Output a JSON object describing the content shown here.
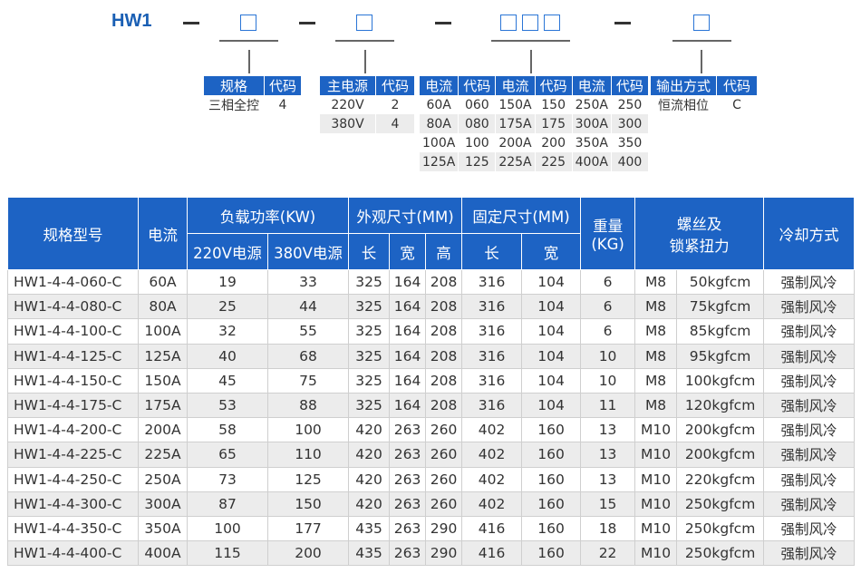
{
  "model_code": {
    "prefix": "HW1"
  },
  "legend_tables": {
    "spec": {
      "headers": [
        "规格",
        "代码"
      ],
      "rows": [
        [
          "三相全控",
          "4"
        ]
      ]
    },
    "power": {
      "headers": [
        "主电源",
        "代码"
      ],
      "rows": [
        [
          "220V",
          "2"
        ],
        [
          "380V",
          "4"
        ]
      ]
    },
    "current": {
      "headers": [
        "电流",
        "代码",
        "电流",
        "代码",
        "电流",
        "代码"
      ],
      "rows": [
        [
          "60A",
          "060",
          "150A",
          "150",
          "250A",
          "250"
        ],
        [
          "80A",
          "080",
          "175A",
          "175",
          "300A",
          "300"
        ],
        [
          "100A",
          "100",
          "200A",
          "200",
          "350A",
          "350"
        ],
        [
          "125A",
          "125",
          "225A",
          "225",
          "400A",
          "400"
        ]
      ]
    },
    "output": {
      "headers": [
        "输出方式",
        "代码"
      ],
      "rows": [
        [
          "恒流相位",
          "C"
        ]
      ]
    }
  },
  "spec_table": {
    "headers": {
      "model": "规格型号",
      "current": "电流",
      "load_power": "负载功率(KW)",
      "v220": "220V电源",
      "v380": "380V电源",
      "dimensions": "外观尺寸(MM)",
      "mounting": "固定尺寸(MM)",
      "length": "长",
      "width": "宽",
      "height": "高",
      "weight_line1": "重量",
      "weight_line2": "(KG)",
      "screw_line1": "螺丝及",
      "screw_line2": "锁紧扭力",
      "cooling": "冷却方式"
    },
    "rows": [
      [
        "HW1-4-4-060-C",
        "60A",
        "19",
        "33",
        "325",
        "164",
        "208",
        "316",
        "104",
        "6",
        "M8",
        "50kgfcm",
        "强制风冷"
      ],
      [
        "HW1-4-4-080-C",
        "80A",
        "25",
        "44",
        "325",
        "164",
        "208",
        "316",
        "104",
        "6",
        "M8",
        "75kgfcm",
        "强制风冷"
      ],
      [
        "HW1-4-4-100-C",
        "100A",
        "32",
        "55",
        "325",
        "164",
        "208",
        "316",
        "104",
        "6",
        "M8",
        "85kgfcm",
        "强制风冷"
      ],
      [
        "HW1-4-4-125-C",
        "125A",
        "40",
        "68",
        "325",
        "164",
        "208",
        "316",
        "104",
        "10",
        "M8",
        "95kgfcm",
        "强制风冷"
      ],
      [
        "HW1-4-4-150-C",
        "150A",
        "45",
        "75",
        "325",
        "164",
        "208",
        "316",
        "104",
        "10",
        "M8",
        "100kgfcm",
        "强制风冷"
      ],
      [
        "HW1-4-4-175-C",
        "175A",
        "53",
        "88",
        "325",
        "164",
        "208",
        "316",
        "104",
        "11",
        "M8",
        "120kgfcm",
        "强制风冷"
      ],
      [
        "HW1-4-4-200-C",
        "200A",
        "58",
        "100",
        "420",
        "263",
        "260",
        "402",
        "160",
        "13",
        "M10",
        "200kgfcm",
        "强制风冷"
      ],
      [
        "HW1-4-4-225-C",
        "225A",
        "65",
        "110",
        "420",
        "263",
        "260",
        "402",
        "160",
        "13",
        "M10",
        "200kgfcm",
        "强制风冷"
      ],
      [
        "HW1-4-4-250-C",
        "250A",
        "73",
        "125",
        "420",
        "263",
        "260",
        "402",
        "160",
        "13",
        "M10",
        "220kgfcm",
        "强制风冷"
      ],
      [
        "HW1-4-4-300-C",
        "300A",
        "87",
        "150",
        "420",
        "263",
        "260",
        "402",
        "160",
        "15",
        "M10",
        "250kgfcm",
        "强制风冷"
      ],
      [
        "HW1-4-4-350-C",
        "350A",
        "100",
        "177",
        "435",
        "263",
        "290",
        "416",
        "160",
        "18",
        "M10",
        "250kgfcm",
        "强制风冷"
      ],
      [
        "HW1-4-4-400-C",
        "400A",
        "115",
        "200",
        "435",
        "263",
        "290",
        "416",
        "160",
        "22",
        "M10",
        "250kgfcm",
        "强制风冷"
      ]
    ]
  },
  "colors": {
    "header_blue": "#1d63c4",
    "title_blue": "#1a5fb4",
    "stripe_gray": "#ececec"
  }
}
